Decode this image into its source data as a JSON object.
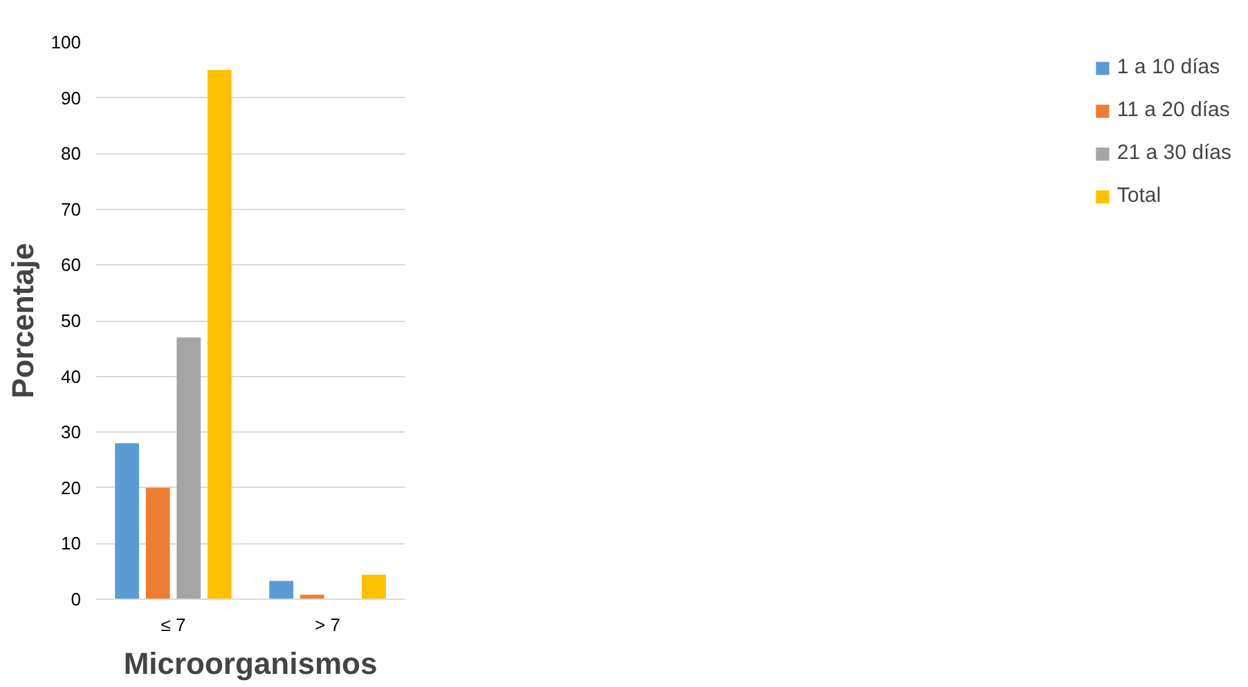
{
  "chart_data": {
    "type": "bar",
    "xlabel": "Microorganismos",
    "ylabel": "Porcentaje",
    "categories": [
      "≤ 7",
      "> 7"
    ],
    "series": [
      {
        "name": "1 a 10 días",
        "color": "#5b9bd5",
        "values": [
          28,
          3.3
        ]
      },
      {
        "name": "11 a 20 días",
        "color": "#ed7d31",
        "values": [
          20,
          0.8
        ]
      },
      {
        "name": "21 a 30 días",
        "color": "#a5a5a5",
        "values": [
          47,
          0
        ]
      },
      {
        "name": "Total",
        "color": "#ffc000",
        "values": [
          95,
          4.4
        ]
      }
    ],
    "ylim": [
      0,
      100
    ],
    "yticks": [
      0,
      10,
      20,
      30,
      40,
      50,
      60,
      70,
      80,
      90,
      100
    ],
    "grid": "y",
    "legend": "right"
  }
}
